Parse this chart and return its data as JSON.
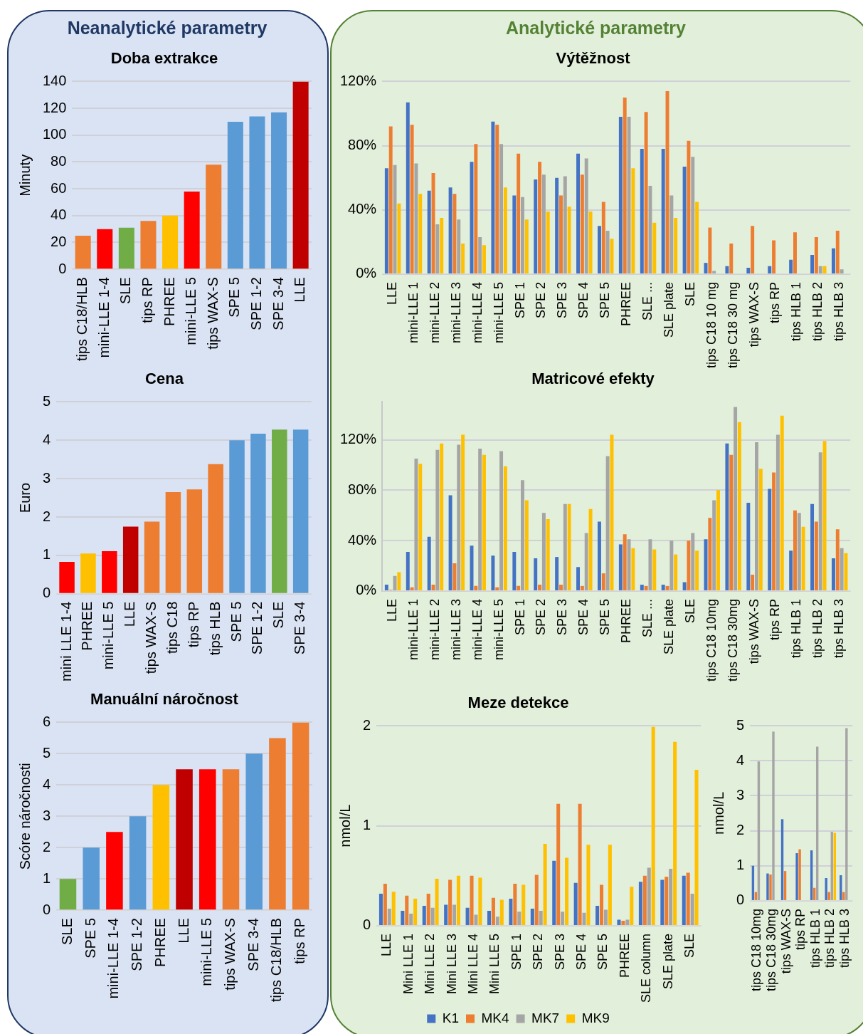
{
  "chart_data": [
    {
      "type": "bar",
      "annotations": [
        "Neanalytické parametry"
      ],
      "title": "Doba extrakce",
      "ylabel": "Minuty",
      "categories": [
        "tips C18/HLB",
        "mini-LLE 1-4",
        "SLE",
        "tips RP",
        "PHREE",
        "mini-LLE 5",
        "tips WAX-S",
        "SPE 5",
        "SPE 1-2",
        "SPE 3-4",
        "LLE"
      ],
      "values": [
        25,
        30,
        31,
        36,
        40,
        58,
        78,
        110,
        114,
        117,
        140
      ],
      "colors": [
        "#ed7d31",
        "#ff0000",
        "#70ad47",
        "#ed7d31",
        "#ffc000",
        "#ff0000",
        "#ed7d31",
        "#5b9bd5",
        "#5b9bd5",
        "#5b9bd5",
        "#c00000"
      ],
      "ylim": [
        0,
        140
      ],
      "yticks": [
        0,
        20,
        40,
        60,
        80,
        100,
        120,
        140
      ],
      "grid": "y",
      "legend": false
    },
    {
      "type": "bar",
      "title": "Cena",
      "ylabel": "Euro",
      "categories": [
        "mini LLE 1-4",
        "PHREE",
        "mini-LLE 5",
        "LLE",
        "tips WAX-S",
        "tips C18",
        "tips RP",
        "tips HLB",
        "SPE 5",
        "SPE 1-2",
        "SLE",
        "SPE 3-4"
      ],
      "values": [
        0.83,
        1.05,
        1.11,
        1.75,
        1.88,
        2.65,
        2.72,
        3.38,
        4.0,
        4.17,
        4.28,
        4.28
      ],
      "colors": [
        "#ff0000",
        "#ffc000",
        "#ff0000",
        "#c00000",
        "#ed7d31",
        "#ed7d31",
        "#ed7d31",
        "#ed7d31",
        "#5b9bd5",
        "#5b9bd5",
        "#70ad47",
        "#5b9bd5"
      ],
      "ylim": [
        0,
        5
      ],
      "yticks": [
        0,
        1,
        2,
        3,
        4,
        5
      ],
      "grid": "y",
      "legend": false
    },
    {
      "type": "bar",
      "title": "Manuální náročnost",
      "ylabel": "Scóre náročnosti",
      "categories": [
        "SLE",
        "SPE 5",
        "mini-LLE 1-4",
        "SPE 1-2",
        "PHREE",
        "LLE",
        "mini-LLE 5",
        "tips WAX-S",
        "SPE 3-4",
        "tips C18/HLB",
        "tips RP"
      ],
      "values": [
        1,
        2,
        2.5,
        3,
        4,
        4.5,
        4.5,
        4.5,
        5,
        5.5,
        6
      ],
      "colors": [
        "#70ad47",
        "#5b9bd5",
        "#ff0000",
        "#5b9bd5",
        "#ffc000",
        "#c00000",
        "#ff0000",
        "#ed7d31",
        "#5b9bd5",
        "#ed7d31",
        "#ed7d31"
      ],
      "ylim": [
        0,
        6
      ],
      "yticks": [
        0,
        1,
        2,
        3,
        4,
        5,
        6
      ],
      "grid": "y",
      "legend": false
    },
    {
      "type": "bar",
      "annotations": [
        "Analytické parametry"
      ],
      "title": "Výtěžnost",
      "categories": [
        "LLE",
        "mini-LLE 1",
        "mini-LLE 2",
        "mini-LLE 3",
        "mini-LLE 4",
        "mini-LLE 5",
        "SPE 1",
        "SPE 2",
        "SPE 3",
        "SPE 4",
        "SPE 5",
        "PHREE",
        "SLE ...",
        "SLE plate",
        "SLE",
        "tips C18 10 mg",
        "tips C18 30 mg",
        "tips WAX-S",
        "tips RP",
        "tips HLB 1",
        "tips HLB 2",
        "tips HLB 3"
      ],
      "series": [
        {
          "color": "#4472c4",
          "values": [
            66,
            107,
            52,
            54,
            70,
            95,
            49,
            59,
            60,
            75,
            30,
            98,
            78,
            78,
            67,
            7,
            5,
            4,
            5,
            9,
            12,
            16
          ]
        },
        {
          "color": "#ed7d31",
          "values": [
            92,
            93,
            63,
            50,
            81,
            93,
            75,
            70,
            49,
            62,
            45,
            110,
            101,
            114,
            83,
            29,
            19,
            30,
            21,
            26,
            23,
            27
          ]
        },
        {
          "color": "#a5a5a5",
          "values": [
            68,
            69,
            31,
            34,
            23,
            81,
            48,
            62,
            61,
            72,
            27,
            98,
            55,
            49,
            73,
            2,
            null,
            null,
            null,
            null,
            5,
            3
          ]
        },
        {
          "color": "#ffc000",
          "values": [
            44,
            50,
            35,
            19,
            18,
            54,
            34,
            39,
            42,
            39,
            22,
            66,
            32,
            35,
            45,
            null,
            null,
            null,
            null,
            null,
            5,
            null
          ]
        }
      ],
      "ylim": [
        0,
        120
      ],
      "yticks": [
        {
          "value": 0,
          "label": "0%"
        },
        {
          "value": 40,
          "label": "40%"
        },
        {
          "value": 80,
          "label": "80%"
        },
        {
          "value": 120,
          "label": "120%"
        }
      ],
      "grid": "y",
      "legend": false
    },
    {
      "type": "bar",
      "title": "Matricové efekty",
      "categories": [
        "LLE",
        "mini-LLE 1",
        "mini-LLE 2",
        "mini-LLE 3",
        "mini-LLE 4",
        "mini-LLE 5",
        "SPE 1",
        "SPE 2",
        "SPE 3",
        "SPE 4",
        "SPE 5",
        "PHREE",
        "SLE ...",
        "SLE plate",
        "SLE",
        "tips C18 10mg",
        "tips C18 30mg",
        "tips WAX-S",
        "tips RP",
        "tips HLB 1",
        "tips HLB 2",
        "tips HLB 3"
      ],
      "series": [
        {
          "color": "#4472c4",
          "values": [
            5,
            31,
            43,
            76,
            36,
            28,
            31,
            26,
            27,
            19,
            55,
            37,
            5,
            5,
            7,
            41,
            117,
            70,
            81,
            32,
            69,
            26
          ]
        },
        {
          "color": "#ed7d31",
          "values": [
            1,
            3,
            5,
            22,
            4,
            3,
            4,
            5,
            5,
            4,
            14,
            45,
            4,
            4,
            40,
            58,
            108,
            13,
            94,
            64,
            55,
            49
          ]
        },
        {
          "color": "#a5a5a5",
          "values": [
            12,
            105,
            112,
            116,
            113,
            111,
            88,
            62,
            69,
            46,
            107,
            41,
            41,
            40,
            46,
            72,
            146,
            118,
            124,
            62,
            110,
            34
          ]
        },
        {
          "color": "#ffc000",
          "values": [
            15,
            101,
            117,
            124,
            108,
            99,
            72,
            57,
            69,
            65,
            124,
            34,
            33,
            29,
            32,
            80,
            134,
            97,
            139,
            51,
            119,
            30
          ]
        }
      ],
      "ylim": [
        0,
        150
      ],
      "yticks": [
        {
          "value": 0,
          "label": "0%"
        },
        {
          "value": 40,
          "label": "40%"
        },
        {
          "value": 80,
          "label": "80%"
        },
        {
          "value": 120,
          "label": "120%"
        }
      ],
      "grid": "y",
      "legend": false
    },
    {
      "type": "bar",
      "title": "Meze detekce",
      "ylabel": "nmol/L",
      "categories": [
        "LLE",
        "Mini LLE 1",
        "Mini LLE 2",
        "Mini LLE 3",
        "Mini LLE 4",
        "Mini LLE 5",
        "SPE 1",
        "SPE 2",
        "SPE 3",
        "SPE 4",
        "SPE 5",
        "PHREE",
        "SLE column",
        "SLE plate",
        "SLE"
      ],
      "series": [
        {
          "name": "K1",
          "color": "#4472c4",
          "values": [
            0.32,
            0.15,
            0.2,
            0.21,
            0.18,
            0.15,
            0.27,
            0.17,
            0.65,
            0.43,
            0.2,
            0.06,
            0.44,
            0.46,
            0.5
          ]
        },
        {
          "name": "MK4",
          "color": "#ed7d31",
          "values": [
            0.42,
            0.3,
            0.32,
            0.46,
            0.5,
            0.28,
            0.42,
            0.51,
            1.22,
            1.22,
            0.41,
            0.05,
            0.5,
            0.49,
            0.53
          ]
        },
        {
          "name": "MK7",
          "color": "#a5a5a5",
          "values": [
            0.17,
            0.12,
            0.18,
            0.21,
            0.11,
            0.09,
            0.14,
            0.15,
            0.14,
            0.13,
            0.16,
            0.06,
            0.58,
            0.57,
            0.32
          ]
        },
        {
          "name": "MK9",
          "color": "#ffc000",
          "values": [
            0.34,
            0.27,
            0.47,
            0.5,
            0.48,
            0.26,
            0.41,
            0.82,
            0.68,
            0.81,
            0.81,
            0.39,
            1.99,
            1.84,
            1.56
          ]
        }
      ],
      "ylim": [
        0,
        2
      ],
      "yticks": [
        0,
        1,
        2
      ],
      "grid": "y",
      "legend": "bottom"
    },
    {
      "type": "bar",
      "ylabel": "nmol/L",
      "categories": [
        "tips C18 10mg",
        "tips C18 30mg",
        "tips WAX-S",
        "tips RP",
        "tips HLB 1",
        "tips HLB 2",
        "tips HLB 3"
      ],
      "series": [
        {
          "color": "#4472c4",
          "values": [
            1.0,
            0.78,
            2.33,
            1.36,
            1.44,
            0.65,
            0.73
          ]
        },
        {
          "color": "#ed7d31",
          "values": [
            0.25,
            0.75,
            0.85,
            1.47,
            0.37,
            0.25,
            0.25
          ]
        },
        {
          "color": "#a5a5a5",
          "values": [
            3.98,
            4.83,
            null,
            null,
            4.4,
            1.97,
            4.93
          ]
        },
        {
          "color": "#ffc000",
          "values": [
            null,
            null,
            null,
            null,
            null,
            1.94,
            null
          ]
        }
      ],
      "ylim": [
        0,
        5
      ],
      "yticks": [
        0,
        1,
        2,
        3,
        4,
        5
      ],
      "grid": "y",
      "legend": false
    }
  ]
}
